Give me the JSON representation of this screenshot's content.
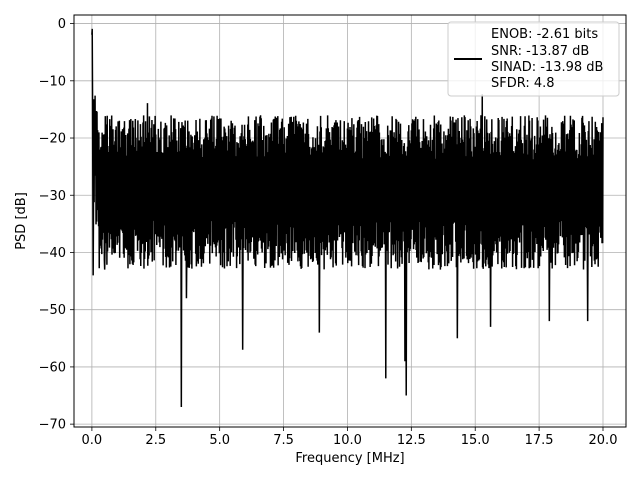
{
  "chart_data": {
    "type": "line",
    "xlabel": "Frequency [MHz]",
    "ylabel": "PSD [dB]",
    "xlim": [
      -0.7,
      20.9
    ],
    "ylim": [
      -70.5,
      1.5
    ],
    "xticks": [
      0.0,
      2.5,
      5.0,
      7.5,
      10.0,
      12.5,
      15.0,
      17.5,
      20.0
    ],
    "xtick_labels": [
      "0.0",
      "2.5",
      "5.0",
      "7.5",
      "10.0",
      "12.5",
      "15.0",
      "17.5",
      "20.0"
    ],
    "yticks": [
      0,
      -10,
      -20,
      -30,
      -40,
      -50,
      -60,
      -70
    ],
    "ytick_labels": [
      "0",
      "−10",
      "−20",
      "−30",
      "−40",
      "−50",
      "−60",
      "−70"
    ],
    "grid": true,
    "legend_position": "top-right",
    "legend_lines": [
      "ENOB: -2.61 bits",
      "SNR: -13.87 dB",
      "SINAD: -13.98 dB",
      "SFDR: 4.8"
    ],
    "line_color": "#000000",
    "x_range": [
      0.0,
      20.0
    ],
    "dc_peak": 0,
    "noise_band_approx": [
      -37,
      -16
    ],
    "notable_dips": [
      {
        "x": 0.05,
        "y": -44
      },
      {
        "x": 0.5,
        "y": -43
      },
      {
        "x": 3.5,
        "y": -67
      },
      {
        "x": 3.7,
        "y": -48
      },
      {
        "x": 5.9,
        "y": -57
      },
      {
        "x": 8.9,
        "y": -54
      },
      {
        "x": 11.5,
        "y": -62
      },
      {
        "x": 12.3,
        "y": -65
      },
      {
        "x": 12.25,
        "y": -59
      },
      {
        "x": 14.3,
        "y": -55
      },
      {
        "x": 15.6,
        "y": -53
      },
      {
        "x": 17.9,
        "y": -52
      },
      {
        "x": 19.4,
        "y": -52
      }
    ]
  }
}
